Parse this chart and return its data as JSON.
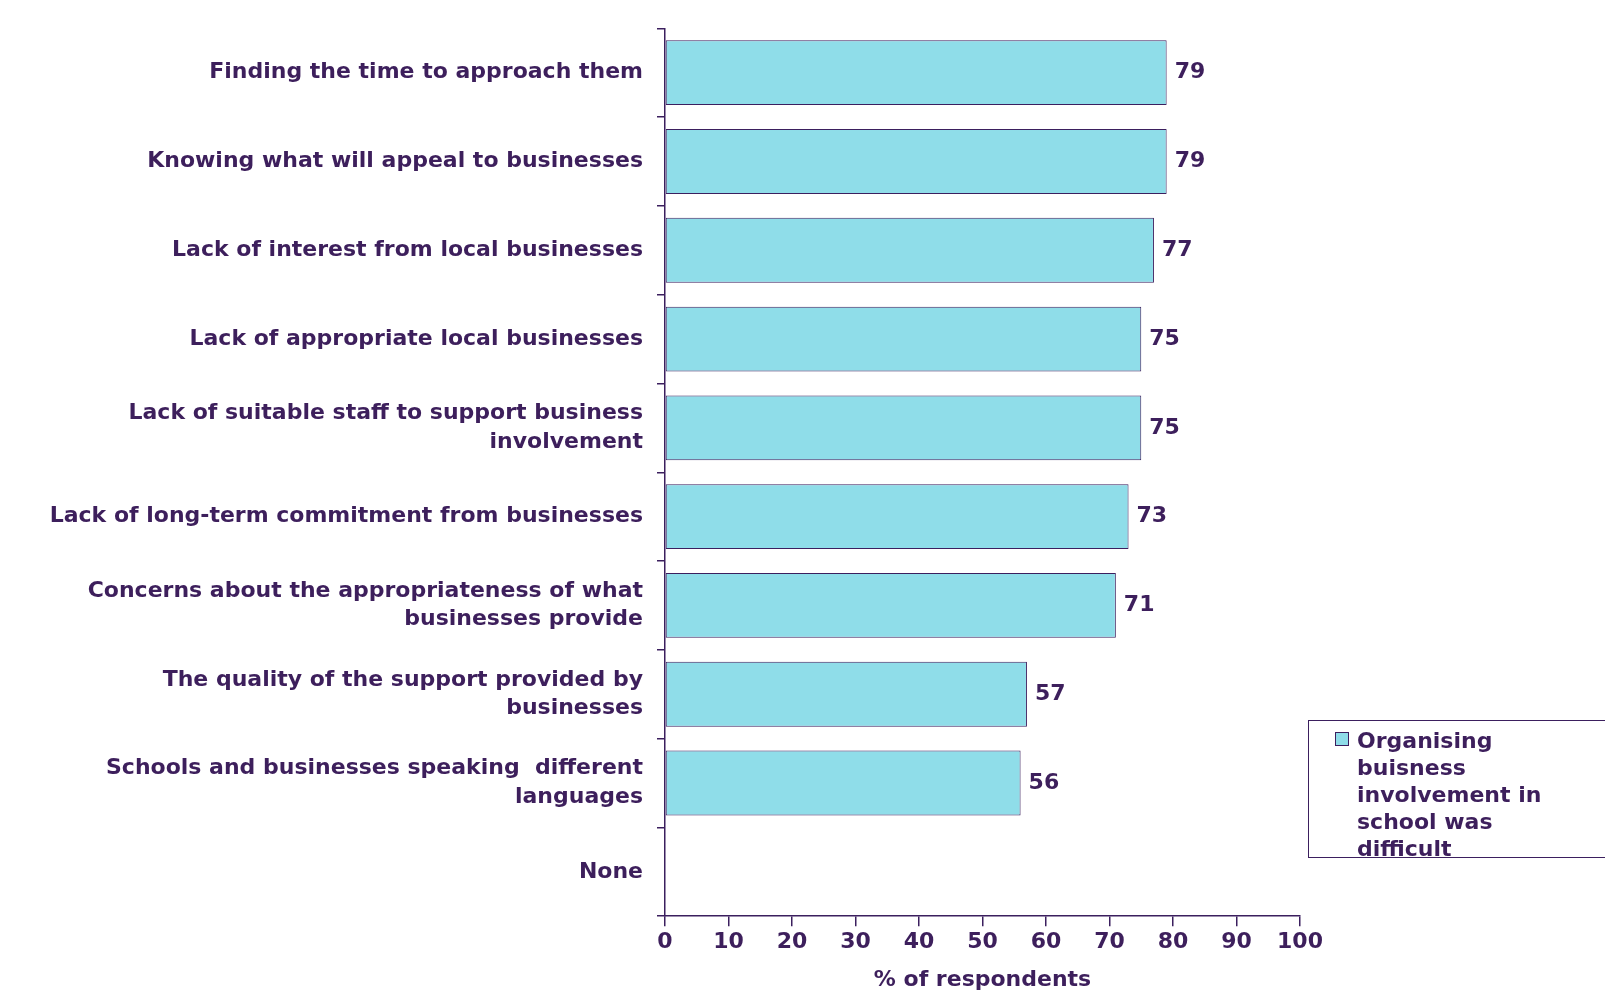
{
  "chart_data": {
    "type": "bar",
    "orientation": "horizontal",
    "xlabel": "% of respondents",
    "categories": [
      "Finding the time to approach them",
      "Knowing what will appeal to businesses",
      "Lack of interest from local businesses",
      "Lack of appropriate local businesses",
      "Lack of suitable staff to support business involvement",
      "Lack of long-term commitment from businesses",
      "Concerns about the appropriateness of what businesses provide",
      "The quality of the support provided by businesses",
      "Schools and businesses speaking  different languages",
      "None"
    ],
    "series": [
      {
        "name": "Organising buisness involvement in school was difficult",
        "color": "#8fdde9",
        "values": [
          79,
          79,
          77,
          75,
          75,
          73,
          71,
          57,
          56,
          null
        ]
      }
    ],
    "xlim": [
      0,
      100
    ],
    "xticks": [
      0,
      10,
      20,
      30,
      40,
      50,
      60,
      70,
      80,
      90,
      100
    ],
    "grid": false,
    "legend": "bottom right",
    "data_labels": true
  }
}
